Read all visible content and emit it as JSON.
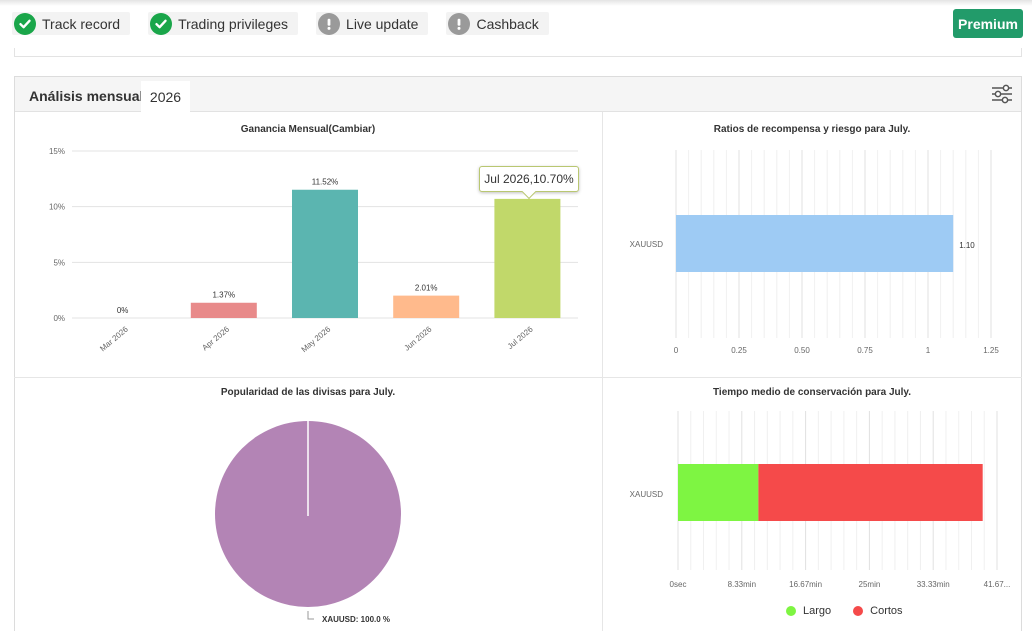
{
  "badges": [
    {
      "label": "Track record",
      "status": "ok",
      "icon": "check-circle-icon"
    },
    {
      "label": "Trading privileges",
      "status": "ok",
      "icon": "check-circle-icon"
    },
    {
      "label": "Live update",
      "status": "warn",
      "icon": "exclamation-circle-icon"
    },
    {
      "label": "Cashback",
      "status": "warn",
      "icon": "exclamation-circle-icon"
    }
  ],
  "premium_label": "Premium",
  "panel": {
    "title": "Análisis mensual",
    "year_tab": "2026",
    "settings_icon": "sliders-icon"
  },
  "colors": {
    "ok": "#1aa64a",
    "warn": "#9a9a9a",
    "premium": "#229b6a"
  },
  "chart_data": [
    {
      "type": "bar",
      "title": "Ganancia Mensual(Cambiar)",
      "categories": [
        "Mar 2026",
        "Apr 2026",
        "May 2026",
        "Jun 2026",
        "Jul 2026"
      ],
      "values": [
        0,
        1.37,
        11.52,
        2.01,
        10.7
      ],
      "value_labels": [
        "0%",
        "1.37%",
        "11.52%",
        "2.01%",
        ""
      ],
      "colors": [
        "#e88a8a",
        "#e88a8a",
        "#5bb5b0",
        "#ffba8c",
        "#c1d86a"
      ],
      "yticks": [
        "0%",
        "5%",
        "10%",
        "15%"
      ],
      "ylim": [
        0,
        15
      ],
      "tooltip": "Jul 2026,10.70%",
      "grid": true
    },
    {
      "type": "bar",
      "orientation": "horizontal",
      "title": "Ratios de recompensa y riesgo para July.",
      "categories": [
        "XAUUSD"
      ],
      "values": [
        1.1
      ],
      "value_labels": [
        "1.10"
      ],
      "color": "#9ecbf4",
      "xticks": [
        "0",
        "0.25",
        "0.50",
        "0.75",
        "1",
        "1.25"
      ],
      "xlim": [
        0,
        1.25
      ],
      "grid": true
    },
    {
      "type": "pie",
      "title": "Popularidad de las divisas para July.",
      "labels": [
        "XAUUSD"
      ],
      "values": [
        100.0
      ],
      "slice_label": "XAUUSD: 100.0 %",
      "color": "#b384b5"
    },
    {
      "type": "bar",
      "orientation": "horizontal",
      "stacked": true,
      "title": "Tiempo medio de conservación para July.",
      "categories": [
        "XAUUSD"
      ],
      "series": [
        {
          "name": "Largo",
          "values": [
            10.5
          ],
          "color": "#7ef542"
        },
        {
          "name": "Cortos",
          "values": [
            29.3
          ],
          "color": "#f54a4a"
        }
      ],
      "xticks": [
        "0sec",
        "8.33min",
        "16.67min",
        "25min",
        "33.33min",
        "41.67..."
      ],
      "xlim_minutes": [
        0,
        41.67
      ],
      "legend": "bottom",
      "grid": true
    }
  ]
}
